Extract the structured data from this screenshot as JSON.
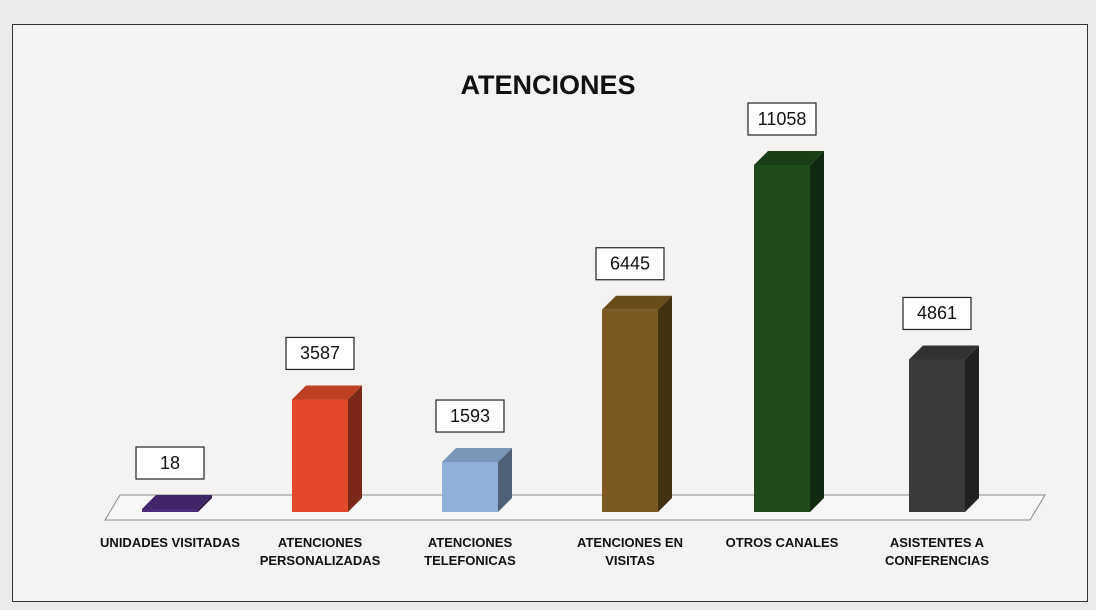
{
  "chart_data": {
    "type": "bar3d",
    "title": "ATENCIONES",
    "categories": [
      "UNIDADES VISITADAS",
      "ATENCIONES PERSONALIZADAS",
      "ATENCIONES TELEFONICAS",
      "ATENCIONES EN VISITAS",
      "OTROS CANALES",
      "ASISTENTES A CONFERENCIAS"
    ],
    "values": [
      18,
      3587,
      1593,
      6445,
      11058,
      4861
    ],
    "colors": [
      "#4b2a7a",
      "#e04a2a",
      "#8fb0d8",
      "#7a5a20",
      "#1f4a1a",
      "#3a3a3a"
    ]
  }
}
